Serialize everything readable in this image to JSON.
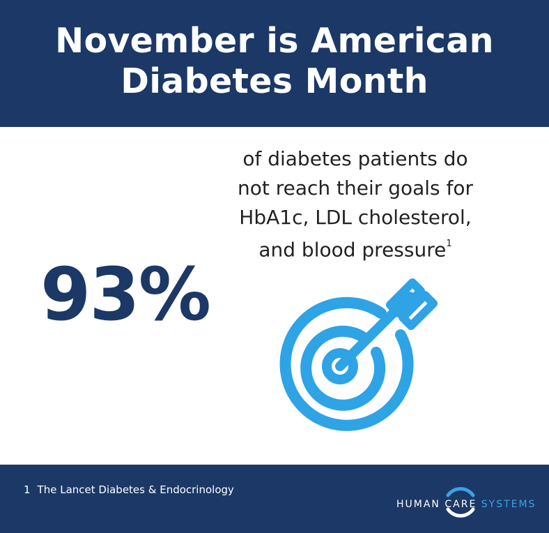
{
  "header": {
    "title_line1": "November is American",
    "title_line2": "Diabetes Month"
  },
  "main": {
    "stat": "93%",
    "desc_line1": "of diabetes patients do",
    "desc_line2": "not reach their goals for",
    "desc_line3": "HbA1c, LDL cholesterol,",
    "desc_line4": "and blood pressure",
    "footnote_marker": "1",
    "icon": "target-arrow-icon"
  },
  "footer": {
    "footnote_number": "1",
    "footnote_text": "The Lancet Diabetes & Endocrinology",
    "logo": {
      "word1": "HUMAN",
      "word2": "CARE",
      "word3": "SYSTEMS"
    }
  },
  "colors": {
    "navy": "#1b3866",
    "accent_blue": "#2ea3e6",
    "text_dark": "#222222",
    "white": "#ffffff"
  }
}
